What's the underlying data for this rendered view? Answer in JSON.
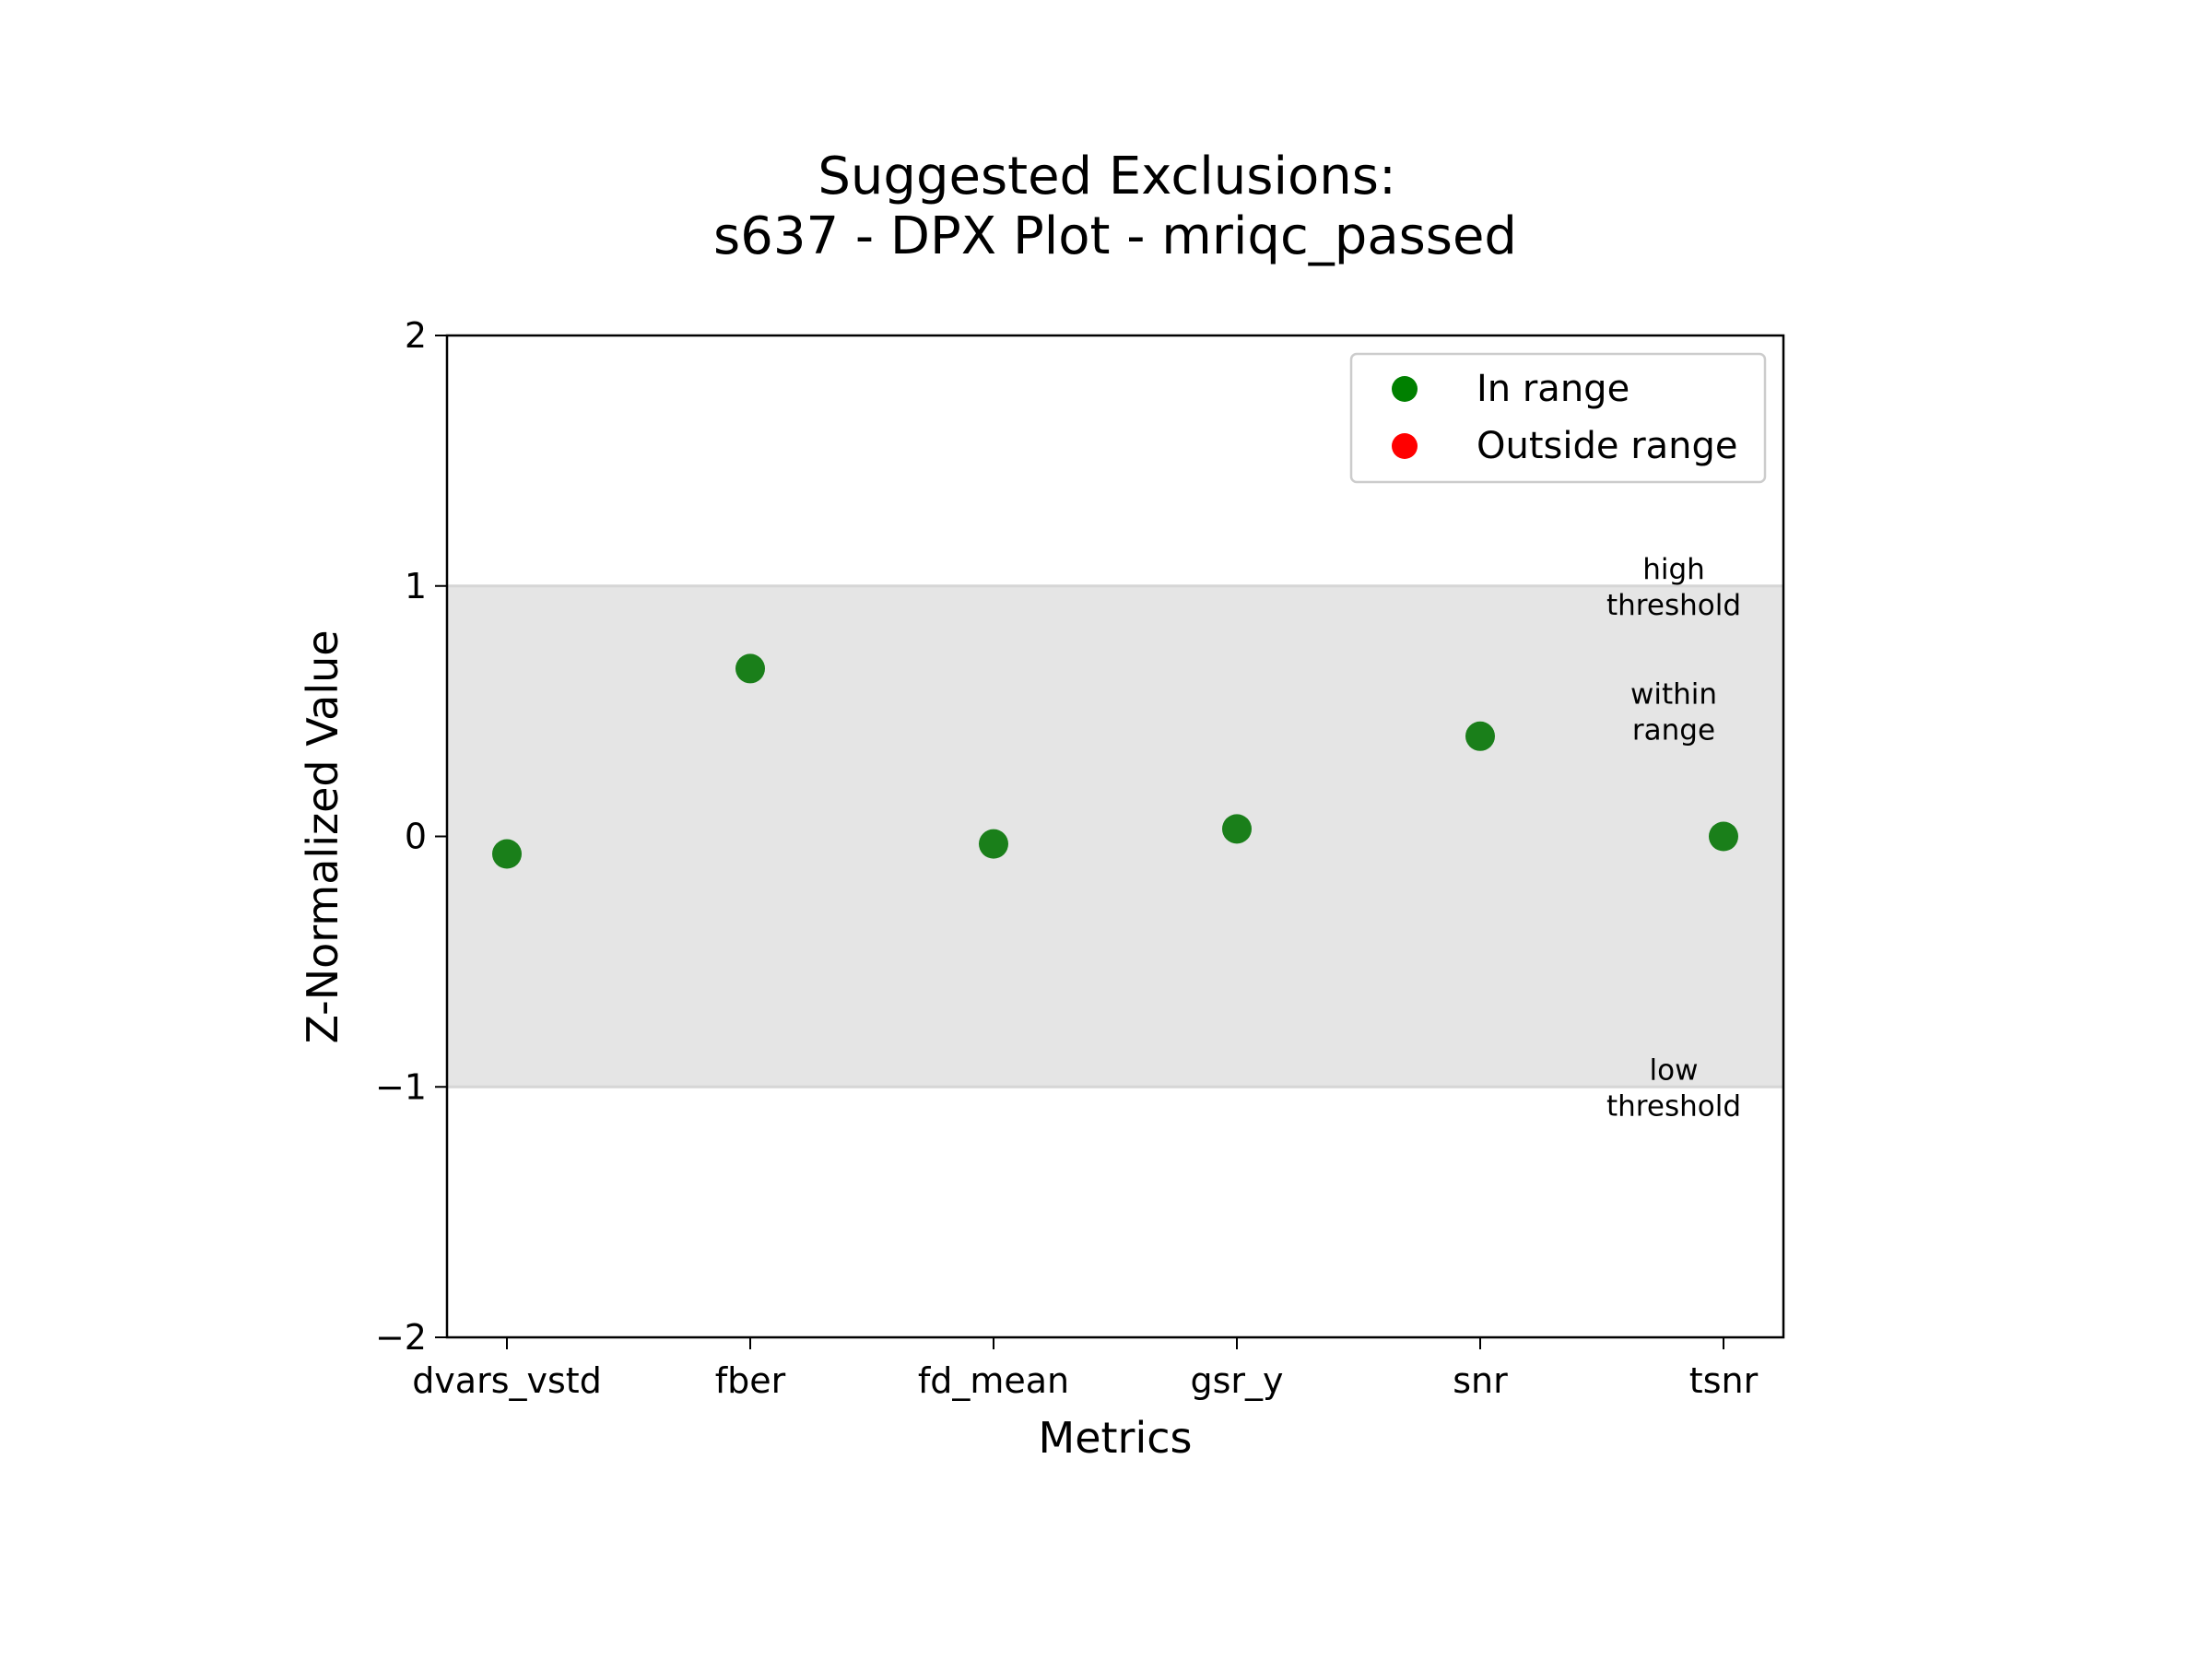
{
  "chart_data": {
    "type": "scatter",
    "title_lines": [
      "Suggested Exclusions:",
      "s637 - DPX Plot - mriqc_passed"
    ],
    "xlabel": "Metrics",
    "ylabel": "Z-Normalized Value",
    "categories": [
      "dvars_vstd",
      "fber",
      "fd_mean",
      "gsr_y",
      "snr",
      "tsnr"
    ],
    "values": [
      -0.07,
      0.67,
      -0.03,
      0.03,
      0.4,
      0.0
    ],
    "ylim": [
      -2,
      2
    ],
    "yticks": [
      {
        "value": 2,
        "label": "2"
      },
      {
        "value": 1,
        "label": "1"
      },
      {
        "value": 0,
        "label": "0"
      },
      {
        "value": -1,
        "label": "−1"
      },
      {
        "value": -2,
        "label": "−2"
      }
    ],
    "band": {
      "low": -1,
      "high": 1,
      "color": "#e5e5e5",
      "edge_color": "#d6d6d6"
    },
    "in_range_color": "#1a7f1a",
    "outside_range_color": "#ff0000",
    "legend": {
      "position": "top-right",
      "entries": [
        {
          "label": "In range",
          "color": "#008000"
        },
        {
          "label": "Outside range",
          "color": "#ff0000"
        }
      ]
    },
    "annotations": [
      {
        "lines": [
          "high",
          "threshold"
        ],
        "y": 1
      },
      {
        "lines": [
          "within",
          "range"
        ],
        "y": 0.5
      },
      {
        "lines": [
          "low",
          "threshold"
        ],
        "y": -1
      }
    ],
    "grid": false
  }
}
